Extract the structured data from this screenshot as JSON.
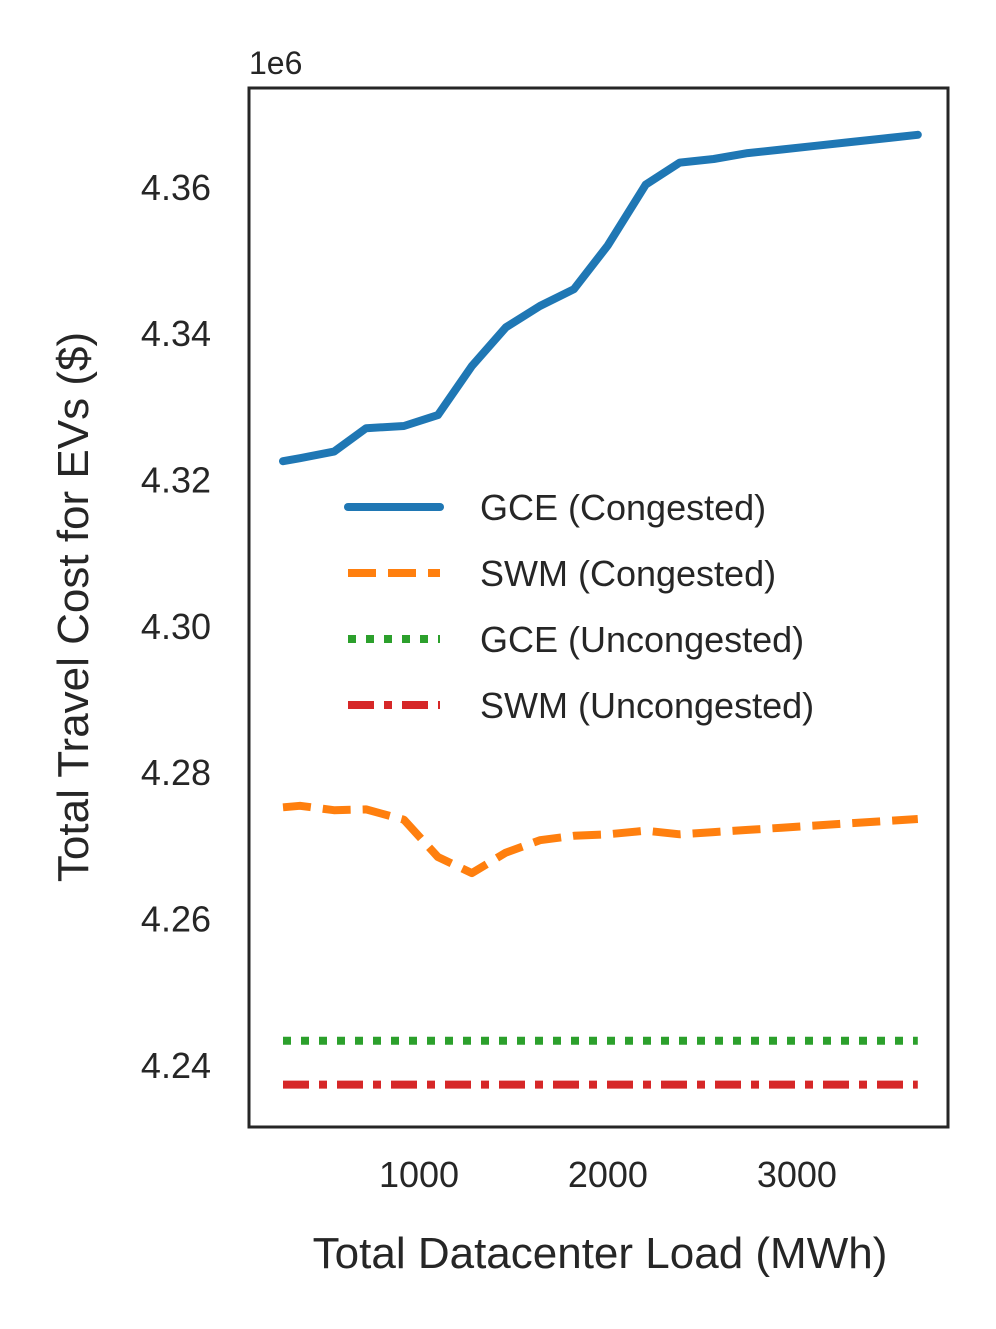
{
  "chart_data": {
    "type": "line",
    "title": "",
    "xlabel": "Total Datacenter Load (MWh)",
    "ylabel": "Total Travel Cost for EVs ($)",
    "y_offset_label": "1e6",
    "xlim": [
      100,
      3800
    ],
    "ylim": [
      4.2315,
      4.3735
    ],
    "xticks": [
      1000,
      2000,
      3000
    ],
    "yticks": [
      4.24,
      4.26,
      4.28,
      4.3,
      4.32,
      4.34,
      4.36
    ],
    "xtick_labels": [
      "1000",
      "2000",
      "3000"
    ],
    "ytick_labels": [
      "4.24",
      "4.26",
      "4.28",
      "4.30",
      "4.32",
      "4.34",
      "4.36"
    ],
    "grid": false,
    "legend_position": "center-right",
    "x": [
      280,
      370,
      550,
      720,
      920,
      1100,
      1280,
      1460,
      1640,
      1820,
      2000,
      2200,
      2380,
      2560,
      2740,
      2920,
      3100,
      3280,
      3460,
      3640
    ],
    "series": [
      {
        "name": "GCE (Congested)",
        "color": "#1f77b4",
        "style": "solid",
        "values": [
          4.3225,
          4.3229,
          4.3238,
          4.327,
          4.3273,
          4.3288,
          4.3355,
          4.3408,
          4.3437,
          4.346,
          4.352,
          4.3603,
          4.3633,
          4.3638,
          4.3646,
          4.3651,
          4.3656,
          4.3661,
          4.3666,
          4.3671
        ]
      },
      {
        "name": "SWM (Congested)",
        "color": "#ff7f0e",
        "style": "dashed",
        "values": [
          4.2752,
          4.2754,
          4.2748,
          4.2749,
          4.2735,
          4.2684,
          4.2662,
          4.269,
          4.2707,
          4.2713,
          4.2715,
          4.272,
          4.2715,
          4.2718,
          4.2721,
          4.2724,
          4.2727,
          4.273,
          4.2733,
          4.2736
        ]
      },
      {
        "name": "GCE (Uncongested)",
        "color": "#2ca02c",
        "style": "dotted",
        "values": [
          4.2433,
          4.2433,
          4.2433,
          4.2433,
          4.2433,
          4.2433,
          4.2433,
          4.2433,
          4.2433,
          4.2433,
          4.2433,
          4.2433,
          4.2433,
          4.2433,
          4.2433,
          4.2433,
          4.2433,
          4.2433,
          4.2433,
          4.2433
        ]
      },
      {
        "name": "SWM (Uncongested)",
        "color": "#d62728",
        "style": "dashdot",
        "values": [
          4.2373,
          4.2373,
          4.2373,
          4.2373,
          4.2373,
          4.2373,
          4.2373,
          4.2373,
          4.2373,
          4.2373,
          4.2373,
          4.2373,
          4.2373,
          4.2373,
          4.2373,
          4.2373,
          4.2373,
          4.2373,
          4.2373,
          4.2373
        ]
      }
    ]
  }
}
